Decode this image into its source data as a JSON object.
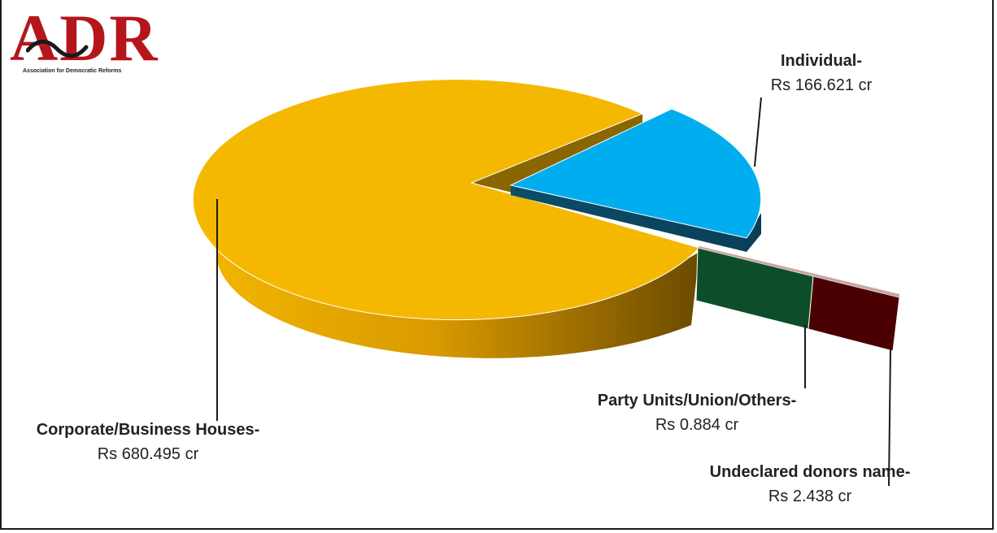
{
  "logo": {
    "text": "ADR",
    "tagline": "Association for Democratic Reforms",
    "color": "#b5161c"
  },
  "chart_data": {
    "type": "pie",
    "unit": "Rs cr",
    "slices": [
      {
        "name": "Corporate/Business Houses-",
        "value_label": "Rs 680.495 cr",
        "value": 680.495,
        "color": "#f5b800"
      },
      {
        "name": "Individual-",
        "value_label": "Rs 166.621 cr",
        "value": 166.621,
        "color": "#00aeef"
      },
      {
        "name": "Party Units/Union/Others-",
        "value_label": "Rs 0.884 cr",
        "value": 0.884,
        "color": "#0d4d2a"
      },
      {
        "name": "Undeclared donors name-",
        "value_label": "Rs 2.438 cr",
        "value": 2.438,
        "color": "#4a0000"
      }
    ]
  }
}
